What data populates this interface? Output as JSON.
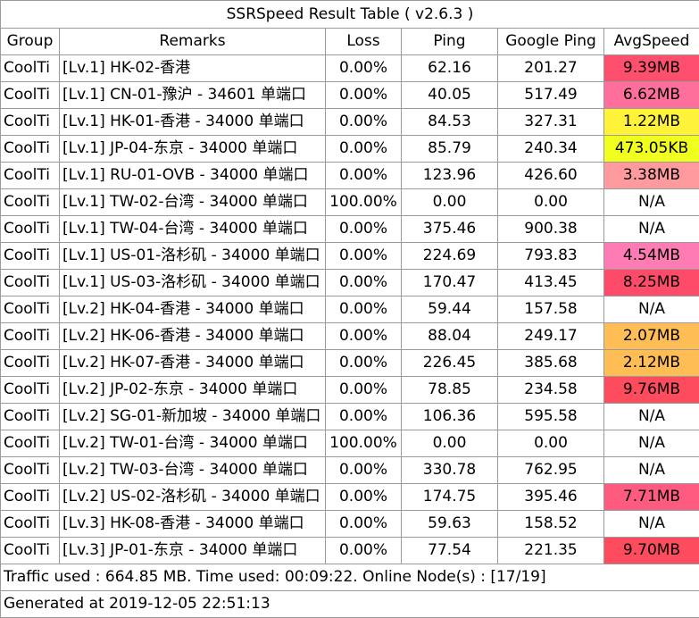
{
  "title": "SSRSpeed Result Table ( v2.6.3 )",
  "headers": [
    "Group",
    "Remarks",
    "Loss",
    "Ping",
    "Google Ping",
    "AvgSpeed"
  ],
  "rows": [
    {
      "group": "CoolTi",
      "remarks": "[Lv.1] HK-02-香港",
      "loss": "0.00%",
      "ping": "62.16",
      "gping": "201.27",
      "speed": "9.39MB",
      "color": "#ff4f6e"
    },
    {
      "group": "CoolTi",
      "remarks": "[Lv.1] CN-01-豫沪 - 34601 单端口",
      "loss": "0.00%",
      "ping": "40.05",
      "gping": "517.49",
      "speed": "6.62MB",
      "color": "#ff6f9c"
    },
    {
      "group": "CoolTi",
      "remarks": "[Lv.1] HK-01-香港 - 34000 单端口",
      "loss": "0.00%",
      "ping": "84.53",
      "gping": "327.31",
      "speed": "1.22MB",
      "color": "#fff33a"
    },
    {
      "group": "CoolTi",
      "remarks": "[Lv.1] JP-04-东京 - 34000 单端口",
      "loss": "0.00%",
      "ping": "85.79",
      "gping": "240.34",
      "speed": "473.05KB",
      "color": "#f0ff1e"
    },
    {
      "group": "CoolTi",
      "remarks": "[Lv.1] RU-01-OVB - 34000 单端口",
      "loss": "0.00%",
      "ping": "123.96",
      "gping": "426.60",
      "speed": "3.38MB",
      "color": "#ff9a9f"
    },
    {
      "group": "CoolTi",
      "remarks": "[Lv.1] TW-02-台湾 - 34000 单端口",
      "loss": "100.00%",
      "ping": "0.00",
      "gping": "0.00",
      "speed": "N/A",
      "color": ""
    },
    {
      "group": "CoolTi",
      "remarks": "[Lv.1] TW-04-台湾 - 34000 单端口",
      "loss": "0.00%",
      "ping": "375.46",
      "gping": "900.38",
      "speed": "N/A",
      "color": ""
    },
    {
      "group": "CoolTi",
      "remarks": "[Lv.1] US-01-洛杉矶 - 34000 单端口",
      "loss": "0.00%",
      "ping": "224.69",
      "gping": "793.83",
      "speed": "4.54MB",
      "color": "#ff7bb3"
    },
    {
      "group": "CoolTi",
      "remarks": "[Lv.1] US-03-洛杉矶 - 34000 单端口",
      "loss": "0.00%",
      "ping": "170.47",
      "gping": "413.45",
      "speed": "8.25MB",
      "color": "#ff4b6a"
    },
    {
      "group": "CoolTi",
      "remarks": "[Lv.2] HK-04-香港 - 34000 单端口",
      "loss": "0.00%",
      "ping": "59.44",
      "gping": "157.58",
      "speed": "N/A",
      "color": ""
    },
    {
      "group": "CoolTi",
      "remarks": "[Lv.2] HK-06-香港 - 34000 单端口",
      "loss": "0.00%",
      "ping": "88.04",
      "gping": "249.17",
      "speed": "2.07MB",
      "color": "#ffbe55"
    },
    {
      "group": "CoolTi",
      "remarks": "[Lv.2] HK-07-香港 - 34000 单端口",
      "loss": "0.00%",
      "ping": "226.45",
      "gping": "385.68",
      "speed": "2.12MB",
      "color": "#ffbe55"
    },
    {
      "group": "CoolTi",
      "remarks": "[Lv.2] JP-02-东京 - 34000 单端口",
      "loss": "0.00%",
      "ping": "78.85",
      "gping": "234.58",
      "speed": "9.76MB",
      "color": "#ff4b5e"
    },
    {
      "group": "CoolTi",
      "remarks": "[Lv.2] SG-01-新加坡 - 34000 单端口",
      "loss": "0.00%",
      "ping": "106.36",
      "gping": "595.58",
      "speed": "N/A",
      "color": ""
    },
    {
      "group": "CoolTi",
      "remarks": "[Lv.2] TW-01-台湾 - 34000 单端口",
      "loss": "100.00%",
      "ping": "0.00",
      "gping": "0.00",
      "speed": "N/A",
      "color": ""
    },
    {
      "group": "CoolTi",
      "remarks": "[Lv.2] TW-03-台湾 - 34000 单端口",
      "loss": "0.00%",
      "ping": "330.78",
      "gping": "762.95",
      "speed": "N/A",
      "color": ""
    },
    {
      "group": "CoolTi",
      "remarks": "[Lv.2] US-02-洛杉矶 - 34000 单端口",
      "loss": "0.00%",
      "ping": "174.75",
      "gping": "395.46",
      "speed": "7.71MB",
      "color": "#ff5b80"
    },
    {
      "group": "CoolTi",
      "remarks": "[Lv.3] HK-08-香港 - 34000 单端口",
      "loss": "0.00%",
      "ping": "59.63",
      "gping": "158.52",
      "speed": "N/A",
      "color": ""
    },
    {
      "group": "CoolTi",
      "remarks": "[Lv.3] JP-01-东京 - 34000 单端口",
      "loss": "0.00%",
      "ping": "77.54",
      "gping": "221.35",
      "speed": "9.70MB",
      "color": "#ff4b5e"
    }
  ],
  "footer": {
    "traffic": "Traffic used : 664.85 MB. Time used: 00:09:22. Online Node(s) : [17/19]",
    "generated": "Generated at 2019-12-05 22:51:13"
  }
}
